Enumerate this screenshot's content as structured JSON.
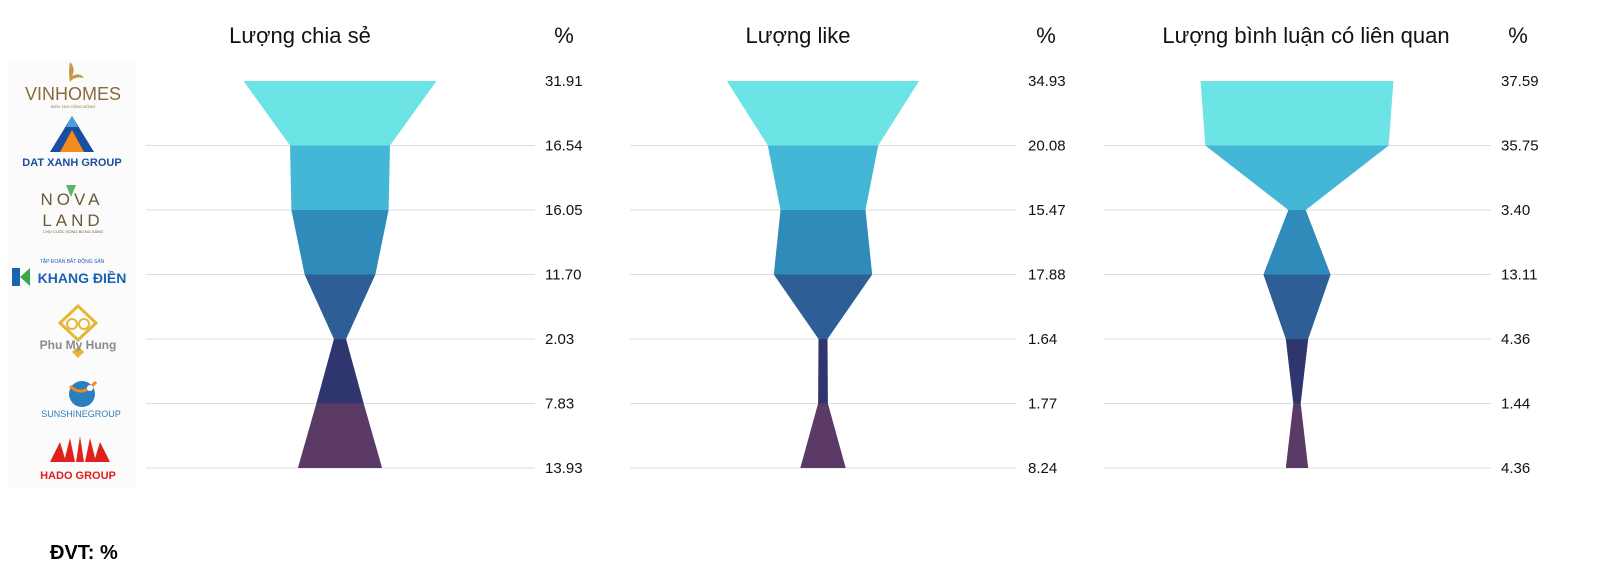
{
  "unit_label": "ĐVT: %",
  "logos": [
    {
      "name": "vinhomes",
      "text": "VINHOMES",
      "tagline": "KIẾN TẠO CỘNG ĐỒNG",
      "color": "#8a6a3a"
    },
    {
      "name": "dat-xanh",
      "text": "DAT XANH GROUP",
      "color": "#1a4e9e"
    },
    {
      "name": "novaland",
      "text_top": "NOVA",
      "text_bottom": "LAND",
      "tagline": "CHO CUỘC SỐNG BỪNG SÁNG",
      "color": "#6b5a3a"
    },
    {
      "name": "khang-dien",
      "text": "KHANG ĐIỀN",
      "tagline": "TẬP ĐOÀN BẤT ĐỘNG SẢN",
      "color": "#1a63b4"
    },
    {
      "name": "phu-my-hung",
      "text": "Phu My Hung",
      "color": "#e3b83a"
    },
    {
      "name": "sunshine",
      "text": "SUNSHINEGROUP",
      "color": "#2a7fc0"
    },
    {
      "name": "hado",
      "text": "HADO GROUP",
      "color": "#e0201a"
    }
  ],
  "colors": [
    "#6ce4e6",
    "#44b7d6",
    "#2e8bba",
    "#2d5f96",
    "#2f366f",
    "#5c3a66"
  ],
  "chart_data": [
    {
      "type": "funnel",
      "title": "Lượng chia sẻ",
      "value_header": "%",
      "categories": [
        "Vinhomes",
        "Dat Xanh Group",
        "Novaland",
        "Khang Điền",
        "Phu My Hung",
        "Sunshine Group",
        "Hado Group"
      ],
      "values": [
        31.91,
        16.54,
        16.05,
        11.7,
        2.03,
        7.83,
        13.93
      ],
      "labels": [
        "31.91",
        "16.54",
        "16.05",
        "11.70",
        "2.03",
        "7.83",
        "13.93"
      ]
    },
    {
      "type": "funnel",
      "title": "Lượng like",
      "value_header": "%",
      "categories": [
        "Vinhomes",
        "Dat Xanh Group",
        "Novaland",
        "Khang Điền",
        "Phu My Hung",
        "Sunshine Group",
        "Hado Group"
      ],
      "values": [
        34.93,
        20.08,
        15.47,
        17.88,
        1.64,
        1.77,
        8.24
      ],
      "labels": [
        "34.93",
        "20.08",
        "15.47",
        "17.88",
        "1.64",
        "1.77",
        "8.24"
      ]
    },
    {
      "type": "funnel",
      "title": "Lượng bình luận có liên quan",
      "value_header": "%",
      "categories": [
        "Vinhomes",
        "Dat Xanh Group",
        "Novaland",
        "Khang Điền",
        "Phu My Hung",
        "Sunshine Group",
        "Hado Group"
      ],
      "values": [
        37.59,
        35.75,
        3.4,
        13.11,
        4.36,
        1.44,
        4.36
      ],
      "labels": [
        "37.59",
        "35.75",
        "3.40",
        "13.11",
        "4.36",
        "1.44",
        "4.36"
      ]
    }
  ]
}
